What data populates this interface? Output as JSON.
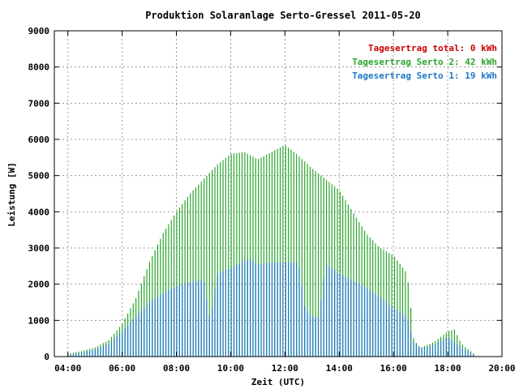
{
  "chart_data": {
    "type": "bar",
    "title": "Produktion Solaranlage Serto-Gressel 2011-05-20",
    "xlabel": "Zeit (UTC)",
    "ylabel": "Leistung [W]",
    "xlim": [
      3.5,
      20.0
    ],
    "ylim": [
      0,
      9000
    ],
    "grid": true,
    "legend_position": "top-right",
    "x_ticks": [
      {
        "value": 4,
        "label": "04:00"
      },
      {
        "value": 6,
        "label": "06:00"
      },
      {
        "value": 8,
        "label": "08:00"
      },
      {
        "value": 10,
        "label": "10:00"
      },
      {
        "value": 12,
        "label": "12:00"
      },
      {
        "value": 14,
        "label": "14:00"
      },
      {
        "value": 16,
        "label": "16:00"
      },
      {
        "value": 18,
        "label": "18:00"
      },
      {
        "value": 20,
        "label": "20:00"
      }
    ],
    "y_ticks": [
      {
        "value": 0,
        "label": "0"
      },
      {
        "value": 1000,
        "label": "1000"
      },
      {
        "value": 2000,
        "label": "2000"
      },
      {
        "value": 3000,
        "label": "3000"
      },
      {
        "value": 4000,
        "label": "4000"
      },
      {
        "value": 5000,
        "label": "5000"
      },
      {
        "value": 6000,
        "label": "6000"
      },
      {
        "value": 7000,
        "label": "7000"
      },
      {
        "value": 8000,
        "label": "8000"
      },
      {
        "value": 9000,
        "label": "9000"
      }
    ],
    "legend": [
      {
        "label": "Tagesertrag total: 0 kWh",
        "color": "#cc0000"
      },
      {
        "label": "Tagesertrag Serto 2: 42 kWh",
        "color": "#2aa52a"
      },
      {
        "label": "Tagesertrag Serto 1: 19 kWh",
        "color": "#1f77c8"
      }
    ],
    "series": [
      {
        "id": "serto2",
        "color": "#2aa52a",
        "points": [
          [
            4.0,
            80
          ],
          [
            4.5,
            150
          ],
          [
            5.0,
            250
          ],
          [
            5.5,
            450
          ],
          [
            6.0,
            900
          ],
          [
            6.5,
            1600
          ],
          [
            7.0,
            2600
          ],
          [
            7.5,
            3400
          ],
          [
            8.0,
            4000
          ],
          [
            8.5,
            4500
          ],
          [
            9.0,
            4900
          ],
          [
            9.5,
            5300
          ],
          [
            10.0,
            5600
          ],
          [
            10.5,
            5650
          ],
          [
            11.0,
            5450
          ],
          [
            11.5,
            5650
          ],
          [
            12.0,
            5850
          ],
          [
            12.5,
            5550
          ],
          [
            13.0,
            5200
          ],
          [
            13.5,
            4900
          ],
          [
            14.0,
            4600
          ],
          [
            14.5,
            4000
          ],
          [
            15.0,
            3400
          ],
          [
            15.5,
            3000
          ],
          [
            16.0,
            2800
          ],
          [
            16.5,
            2300
          ],
          [
            16.6,
            1700
          ],
          [
            16.75,
            450
          ],
          [
            17.0,
            250
          ],
          [
            17.5,
            400
          ],
          [
            18.0,
            700
          ],
          [
            18.25,
            750
          ],
          [
            18.5,
            350
          ],
          [
            19.0,
            60
          ],
          [
            19.05,
            0
          ]
        ]
      },
      {
        "id": "serto1",
        "color": "#1f77c8",
        "points": [
          [
            4.0,
            50
          ],
          [
            4.5,
            100
          ],
          [
            5.0,
            200
          ],
          [
            5.5,
            350
          ],
          [
            6.0,
            700
          ],
          [
            6.5,
            1100
          ],
          [
            7.0,
            1500
          ],
          [
            7.5,
            1750
          ],
          [
            8.0,
            1950
          ],
          [
            8.5,
            2050
          ],
          [
            9.0,
            2150
          ],
          [
            9.25,
            1000
          ],
          [
            9.5,
            2300
          ],
          [
            10.0,
            2450
          ],
          [
            10.5,
            2650
          ],
          [
            10.75,
            2700
          ],
          [
            11.0,
            2550
          ],
          [
            11.5,
            2600
          ],
          [
            12.0,
            2600
          ],
          [
            12.5,
            2600
          ],
          [
            12.75,
            1300
          ],
          [
            13.0,
            1100
          ],
          [
            13.25,
            1100
          ],
          [
            13.5,
            2550
          ],
          [
            14.0,
            2300
          ],
          [
            14.5,
            2100
          ],
          [
            15.0,
            1900
          ],
          [
            15.5,
            1650
          ],
          [
            16.0,
            1350
          ],
          [
            16.5,
            1100
          ],
          [
            16.75,
            380
          ],
          [
            17.0,
            220
          ],
          [
            17.5,
            330
          ],
          [
            18.0,
            550
          ],
          [
            18.5,
            250
          ],
          [
            19.0,
            40
          ],
          [
            19.05,
            0
          ]
        ]
      }
    ]
  }
}
